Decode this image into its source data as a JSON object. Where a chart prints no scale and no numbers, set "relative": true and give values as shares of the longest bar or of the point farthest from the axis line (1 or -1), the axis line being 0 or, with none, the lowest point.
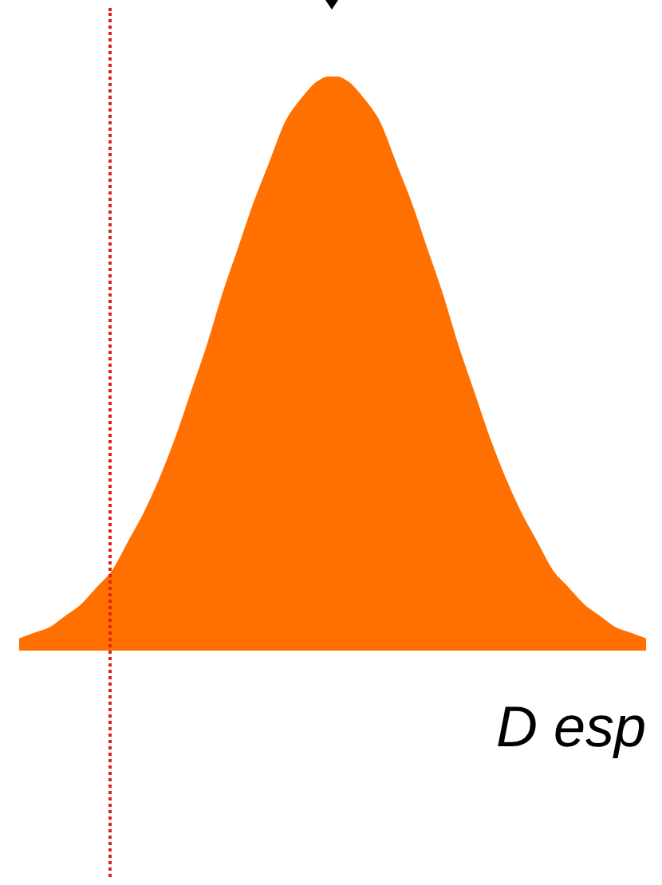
{
  "chart_data": {
    "type": "area",
    "xlabel": "D esp",
    "relative": true,
    "color": "#ff7000",
    "categories": [
      null,
      null,
      null,
      null,
      null,
      null,
      null,
      null,
      null,
      null,
      null,
      null,
      null,
      null,
      null,
      null,
      null,
      null,
      null,
      null,
      null,
      null,
      null,
      null,
      null,
      null,
      null,
      null,
      null,
      null,
      null,
      null,
      null,
      null,
      null,
      null,
      null,
      null,
      null,
      null,
      null
    ],
    "values": [
      0.02,
      0.03,
      0.04,
      0.06,
      0.08,
      0.11,
      0.14,
      0.19,
      0.24,
      0.3,
      0.37,
      0.45,
      0.53,
      0.62,
      0.7,
      0.78,
      0.85,
      0.92,
      0.96,
      0.99,
      1,
      0.99,
      0.96,
      0.92,
      0.85,
      0.78,
      0.7,
      0.62,
      0.53,
      0.45,
      0.37,
      0.3,
      0.24,
      0.19,
      0.14,
      0.11,
      0.08,
      0.06,
      0.04,
      0.03,
      0.02
    ]
  }
}
